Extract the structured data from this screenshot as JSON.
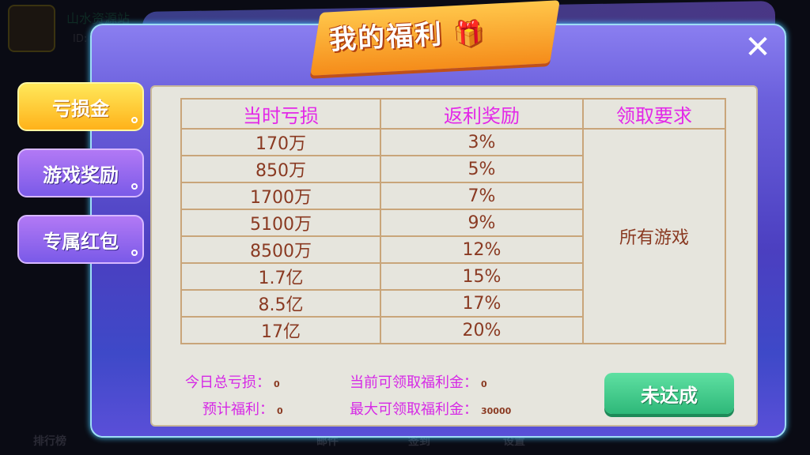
{
  "background": {
    "username": "山水资源站",
    "id_label": "ID:",
    "bottom_nav": [
      "排行榜",
      "邮件",
      "签到",
      "设置"
    ]
  },
  "title": "我的福利",
  "close_label": "✕",
  "tabs": [
    {
      "label": "亏损金",
      "active": true
    },
    {
      "label": "游戏奖励",
      "active": false
    },
    {
      "label": "专属红包",
      "active": false
    }
  ],
  "table": {
    "headers": [
      "当时亏损",
      "返利奖励",
      "领取要求"
    ],
    "rows": [
      [
        "170万",
        "3%"
      ],
      [
        "850万",
        "5%"
      ],
      [
        "1700万",
        "7%"
      ],
      [
        "5100万",
        "9%"
      ],
      [
        "8500万",
        "12%"
      ],
      [
        "1.7亿",
        "15%"
      ],
      [
        "8.5亿",
        "17%"
      ],
      [
        "17亿",
        "20%"
      ]
    ],
    "requirement": "所有游戏"
  },
  "summary": {
    "today_loss_label": "今日总亏损：",
    "today_loss": "0",
    "expected_label": "预计福利：",
    "expected": "0",
    "current_label": "当前可领取福利金：",
    "current": "0",
    "max_label": "最大可领取福利金：",
    "max": "30000"
  },
  "claim_button": "未达成"
}
